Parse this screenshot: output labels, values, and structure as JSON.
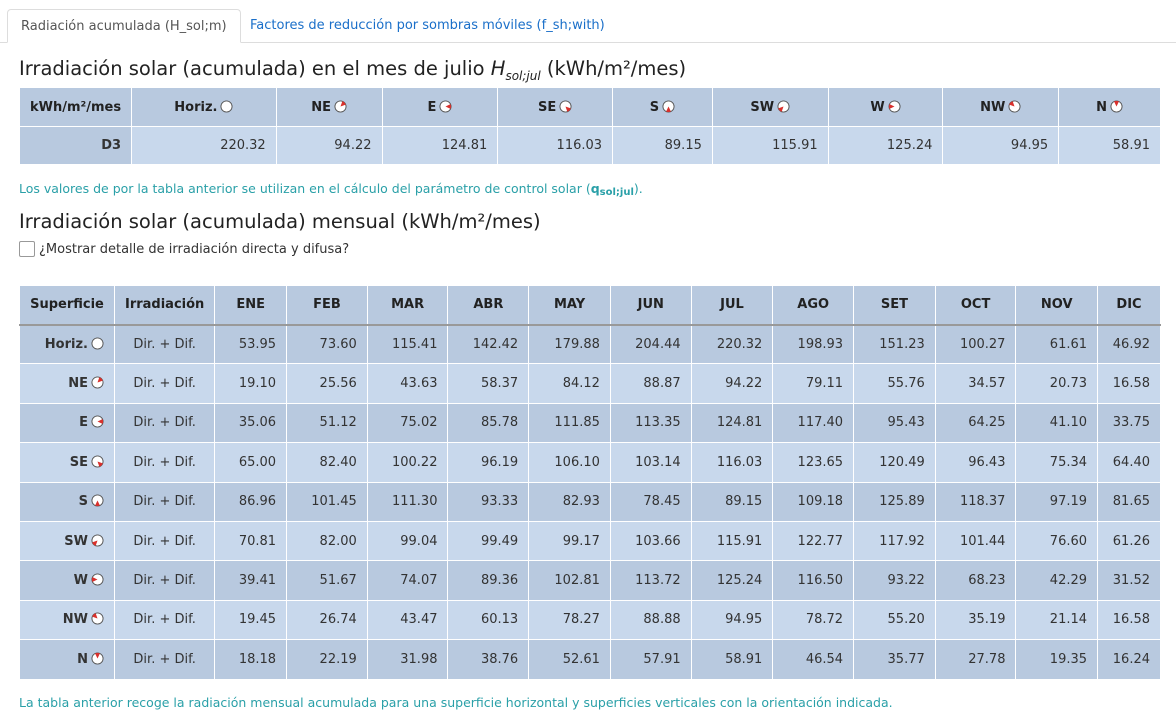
{
  "tabs": [
    {
      "label": "Radiación acumulada (H_sol;m)",
      "active": true
    },
    {
      "label": "Factores de reducción por sombras móviles (f_sh;with)",
      "active": false
    }
  ],
  "section1": {
    "title_prefix": "Irradiación solar (acumulada) en el mes de julio ",
    "title_var": "H",
    "title_sub": "sol;jul",
    "title_suffix": " (kWh/m²/mes)",
    "corner": "kWh/m²/mes",
    "headers": [
      "Horiz.",
      "NE",
      "E",
      "SE",
      "S",
      "SW",
      "W",
      "NW",
      "N"
    ],
    "row_label": "D3",
    "values": [
      "220.32",
      "94.22",
      "124.81",
      "116.03",
      "89.15",
      "115.91",
      "125.24",
      "94.95",
      "58.91"
    ],
    "note_prefix": "Los valores de por la tabla anterior se utilizan en el cálculo del parámetro de control solar (",
    "note_var": "q",
    "note_sub": "sol;jul",
    "note_suffix": ")."
  },
  "section2": {
    "title": "Irradiación solar (acumulada) mensual (kWh/m²/mes)",
    "checkbox_label": "¿Mostrar detalle de irradiación directa y difusa?",
    "checkbox_checked": false,
    "headers": [
      "Superficie",
      "Irradiación",
      "ENE",
      "FEB",
      "MAR",
      "ABR",
      "MAY",
      "JUN",
      "JUL",
      "AGO",
      "SET",
      "OCT",
      "NOV",
      "DIC"
    ],
    "rows": [
      {
        "surface": "Horiz.",
        "irr": "Dir. + Dif.",
        "values": [
          "53.95",
          "73.60",
          "115.41",
          "142.42",
          "179.88",
          "204.44",
          "220.32",
          "198.93",
          "151.23",
          "100.27",
          "61.61",
          "46.92"
        ]
      },
      {
        "surface": "NE",
        "irr": "Dir. + Dif.",
        "values": [
          "19.10",
          "25.56",
          "43.63",
          "58.37",
          "84.12",
          "88.87",
          "94.22",
          "79.11",
          "55.76",
          "34.57",
          "20.73",
          "16.58"
        ]
      },
      {
        "surface": "E",
        "irr": "Dir. + Dif.",
        "values": [
          "35.06",
          "51.12",
          "75.02",
          "85.78",
          "111.85",
          "113.35",
          "124.81",
          "117.40",
          "95.43",
          "64.25",
          "41.10",
          "33.75"
        ]
      },
      {
        "surface": "SE",
        "irr": "Dir. + Dif.",
        "values": [
          "65.00",
          "82.40",
          "100.22",
          "96.19",
          "106.10",
          "103.14",
          "116.03",
          "123.65",
          "120.49",
          "96.43",
          "75.34",
          "64.40"
        ]
      },
      {
        "surface": "S",
        "irr": "Dir. + Dif.",
        "values": [
          "86.96",
          "101.45",
          "111.30",
          "93.33",
          "82.93",
          "78.45",
          "89.15",
          "109.18",
          "125.89",
          "118.37",
          "97.19",
          "81.65"
        ]
      },
      {
        "surface": "SW",
        "irr": "Dir. + Dif.",
        "values": [
          "70.81",
          "82.00",
          "99.04",
          "99.49",
          "99.17",
          "103.66",
          "115.91",
          "122.77",
          "117.92",
          "101.44",
          "76.60",
          "61.26"
        ]
      },
      {
        "surface": "W",
        "irr": "Dir. + Dif.",
        "values": [
          "39.41",
          "51.67",
          "74.07",
          "89.36",
          "102.81",
          "113.72",
          "125.24",
          "116.50",
          "93.22",
          "68.23",
          "42.29",
          "31.52"
        ]
      },
      {
        "surface": "NW",
        "irr": "Dir. + Dif.",
        "values": [
          "19.45",
          "26.74",
          "43.47",
          "60.13",
          "78.27",
          "88.88",
          "94.95",
          "78.72",
          "55.20",
          "35.19",
          "21.14",
          "16.58"
        ]
      },
      {
        "surface": "N",
        "irr": "Dir. + Dif.",
        "values": [
          "18.18",
          "22.19",
          "31.98",
          "38.76",
          "52.61",
          "57.91",
          "58.91",
          "46.54",
          "35.77",
          "27.78",
          "19.35",
          "16.24"
        ]
      }
    ],
    "note": "La tabla anterior recoge la radiación mensual acumulada para una superficie horizontal y superficies verticales con la orientación indicada."
  },
  "colors": {
    "link": "#1a6fc9",
    "note": "#2aa0a8",
    "header_bg": "#b8c9df",
    "row_alt_bg": "#c8d8ec",
    "orientation_mark": "#d9302c"
  }
}
